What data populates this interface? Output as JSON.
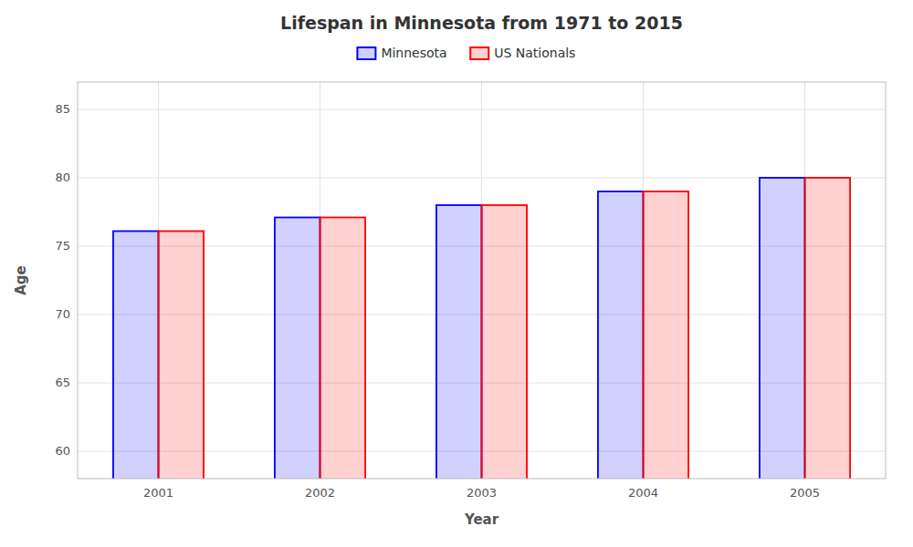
{
  "chart_data": {
    "type": "bar",
    "title": "Lifespan in Minnesota from 1971 to 2015",
    "x_label": "Year",
    "y_label": "Age",
    "categories": [
      "2001",
      "2002",
      "2003",
      "2004",
      "2005"
    ],
    "series": [
      {
        "name": "Minnesota",
        "color": "#0000ff",
        "values": [
          76.1,
          77.1,
          78.0,
          79.0,
          80.0
        ]
      },
      {
        "name": "US Nationals",
        "color": "#ff0000",
        "values": [
          76.1,
          77.1,
          78.0,
          79.0,
          80.0
        ]
      }
    ],
    "ylim": [
      58,
      87
    ],
    "yticks": [
      60,
      65,
      70,
      75,
      80,
      85
    ],
    "grid": true,
    "legend": "top"
  }
}
